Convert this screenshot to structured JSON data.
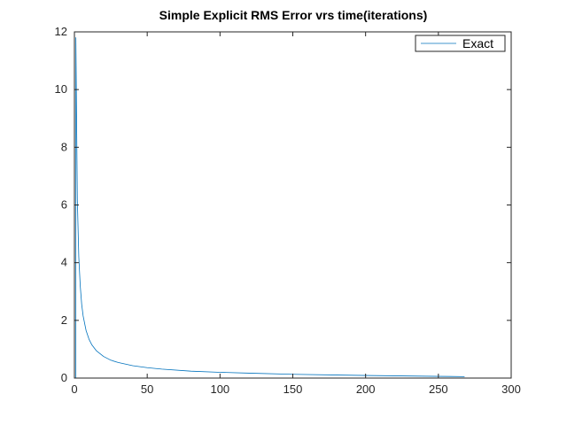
{
  "chart_data": {
    "type": "line",
    "title": "Simple Explicit RMS Error vrs time(iterations)",
    "xlabel": "",
    "ylabel": "",
    "xlim": [
      0,
      300
    ],
    "ylim": [
      0,
      12
    ],
    "xticks": [
      "0",
      "50",
      "100",
      "150",
      "200",
      "250",
      "300"
    ],
    "yticks": [
      "0",
      "2",
      "4",
      "6",
      "8",
      "10",
      "12"
    ],
    "grid": false,
    "legend_position": "top-right",
    "series": [
      {
        "name": "Exact",
        "color": "#0072BD",
        "x": [
          1,
          2,
          3,
          4,
          5,
          6,
          8,
          10,
          12,
          15,
          20,
          25,
          30,
          40,
          50,
          60,
          80,
          100,
          120,
          150,
          200,
          250,
          268
        ],
        "y": [
          11.8,
          6.2,
          4.2,
          3.2,
          2.55,
          2.15,
          1.65,
          1.35,
          1.15,
          0.95,
          0.75,
          0.62,
          0.54,
          0.43,
          0.36,
          0.31,
          0.24,
          0.2,
          0.17,
          0.13,
          0.09,
          0.06,
          0.05
        ]
      }
    ]
  }
}
